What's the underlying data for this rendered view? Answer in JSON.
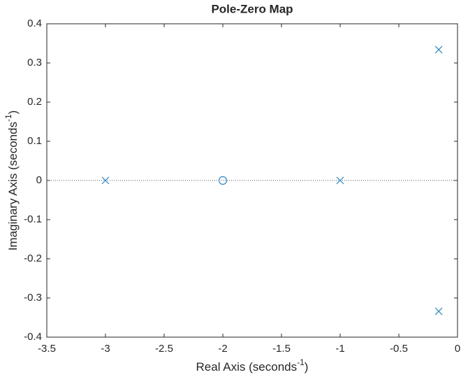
{
  "chart_data": {
    "type": "scatter",
    "title": "Pole-Zero Map",
    "xlabel": [
      "Real Axis (seconds",
      "-1",
      ")"
    ],
    "ylabel": [
      "Imaginary Axis (seconds",
      "-1",
      ")"
    ],
    "xlim": [
      -3.5,
      0
    ],
    "ylim": [
      -0.4,
      0.4
    ],
    "xticks": [
      -3.5,
      -3,
      -2.5,
      -2,
      -1.5,
      -1,
      -0.5,
      0
    ],
    "yticks": [
      -0.4,
      -0.3,
      -0.2,
      -0.1,
      0,
      0.1,
      0.2,
      0.3,
      0.4
    ],
    "series": [
      {
        "marker": "x",
        "color": "#2f86c0",
        "x": [
          -3,
          -1,
          -0.16,
          -0.16
        ],
        "values": [
          0,
          0,
          0.334,
          -0.334
        ]
      },
      {
        "marker": "o",
        "color": "#2f86c0",
        "x": [
          -2
        ],
        "values": [
          0
        ]
      }
    ]
  }
}
